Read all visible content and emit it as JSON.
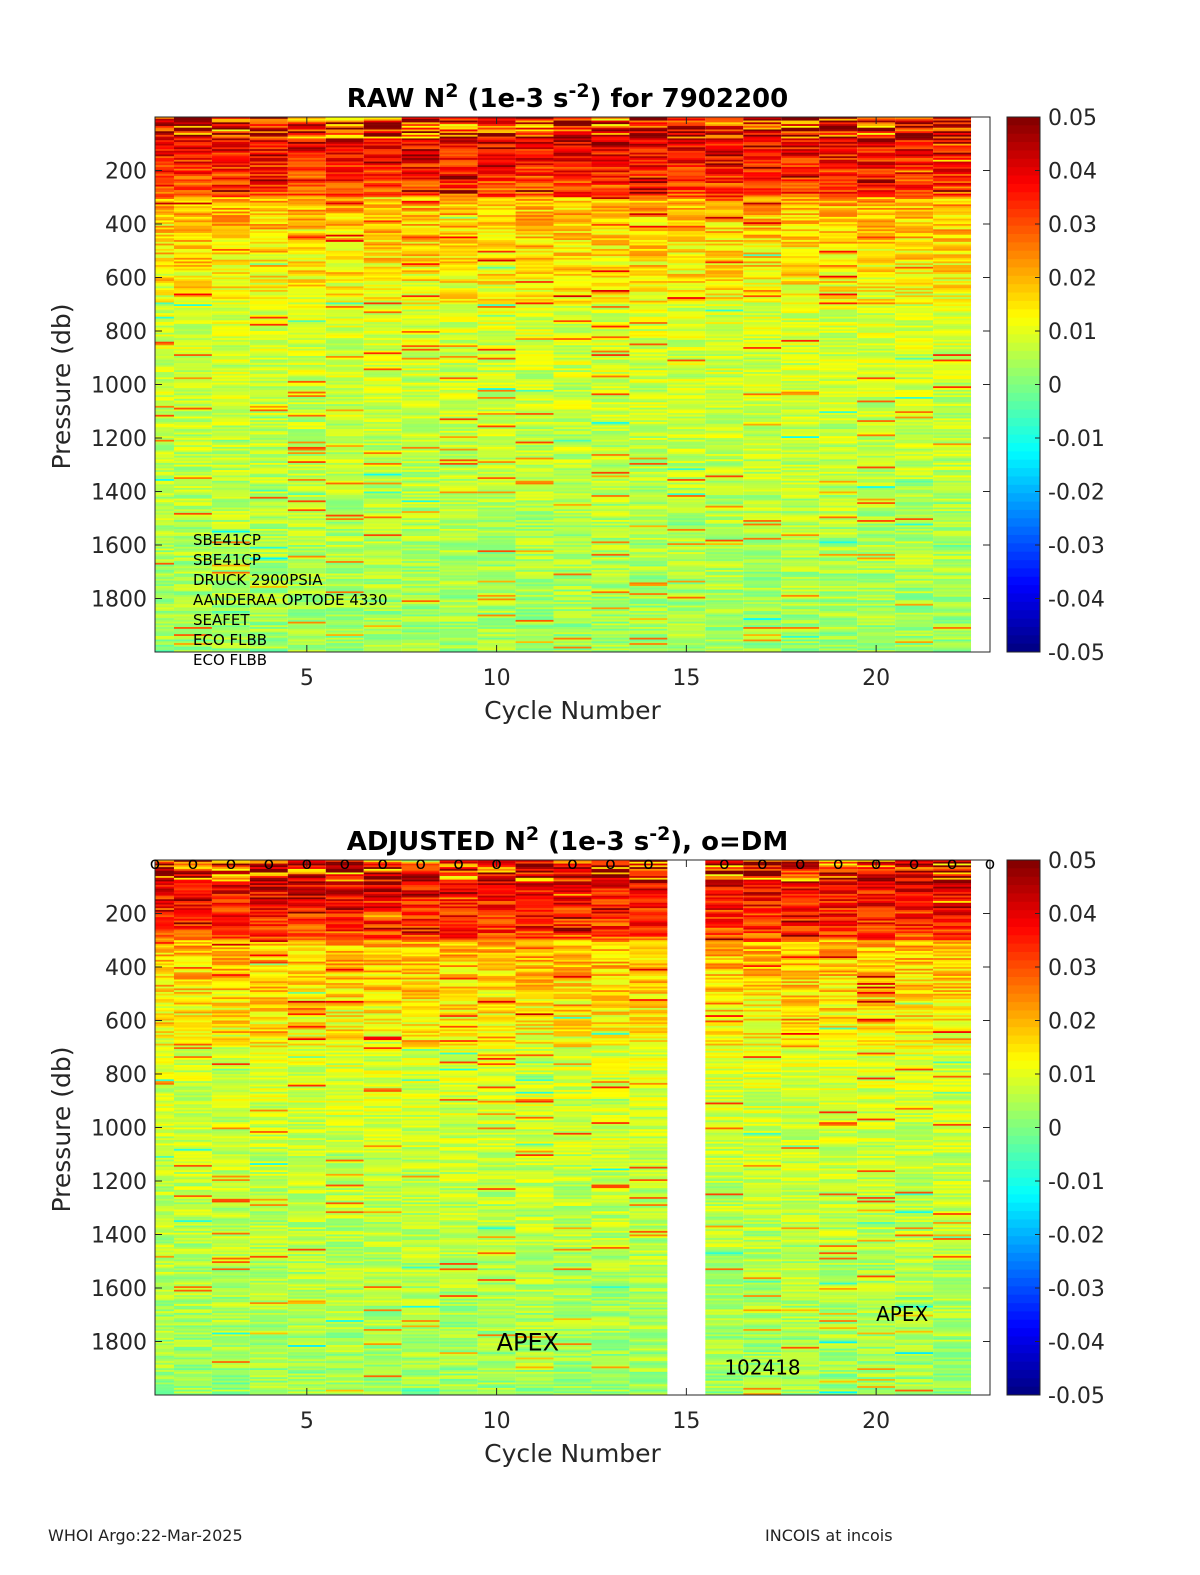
{
  "footer": {
    "left": "WHOI Argo:22-Mar-2025",
    "right": "INCOIS at incois"
  },
  "colorbar": {
    "ticks": [
      0.05,
      0.04,
      0.03,
      0.02,
      0.01,
      0,
      -0.01,
      -0.02,
      -0.03,
      -0.04,
      -0.05
    ],
    "tick_labels": [
      "0.05",
      "0.04",
      "0.03",
      "0.02",
      "0.01",
      "0",
      "-0.01",
      "-0.02",
      "-0.03",
      "-0.04",
      "-0.05"
    ],
    "range": [
      -0.05,
      0.05
    ],
    "colormap": "jet"
  },
  "chart_data": [
    {
      "type": "heatmap",
      "title_main": "RAW N",
      "title_sup": "2",
      "title_mid": " (1e-3 s",
      "title_sup2": "-2",
      "title_end": ") for 7902200",
      "xlabel": "Cycle Number",
      "ylabel": "Pressure (db)",
      "xlim": [
        1,
        23
      ],
      "ylim": [
        0,
        2000
      ],
      "xticks": [
        5,
        10,
        15,
        20
      ],
      "xtick_labels": [
        "5",
        "10",
        "15",
        "20"
      ],
      "yticks": [
        200,
        400,
        600,
        800,
        1000,
        1200,
        1400,
        1600,
        1800
      ],
      "ytick_labels": [
        "200",
        "400",
        "600",
        "800",
        "1000",
        "1200",
        "1400",
        "1600",
        "1800"
      ],
      "cycles": [
        1,
        2,
        3,
        4,
        5,
        6,
        7,
        8,
        9,
        10,
        11,
        12,
        13,
        14,
        15,
        16,
        17,
        18,
        19,
        20,
        21,
        22
      ],
      "missing_cycles": [],
      "dm_marker_cycles": [],
      "value_range": [
        -0.05,
        0.05
      ],
      "sensors": [
        "SBE41CP",
        "SBE41CP",
        "DRUCK 2900PSIA",
        "AANDERAA OPTODE 4330",
        "SEAFET",
        "ECO FLBB",
        "ECO FLBB"
      ],
      "annotations": []
    },
    {
      "type": "heatmap",
      "title_main": "ADJUSTED N",
      "title_sup": "2",
      "title_mid": " (1e-3 s",
      "title_sup2": "-2",
      "title_end": "), o=DM",
      "xlabel": "Cycle Number",
      "ylabel": "Pressure (db)",
      "xlim": [
        1,
        23
      ],
      "ylim": [
        0,
        2000
      ],
      "xticks": [
        5,
        10,
        15,
        20
      ],
      "xtick_labels": [
        "5",
        "10",
        "15",
        "20"
      ],
      "yticks": [
        200,
        400,
        600,
        800,
        1000,
        1200,
        1400,
        1600,
        1800
      ],
      "ytick_labels": [
        "200",
        "400",
        "600",
        "800",
        "1000",
        "1200",
        "1400",
        "1600",
        "1800"
      ],
      "cycles": [
        1,
        2,
        3,
        4,
        5,
        6,
        7,
        8,
        9,
        10,
        11,
        12,
        13,
        14,
        16,
        17,
        18,
        19,
        20,
        21,
        22
      ],
      "missing_cycles": [
        15
      ],
      "dm_marker_cycles": [
        1,
        2,
        3,
        4,
        5,
        6,
        7,
        8,
        9,
        10,
        12,
        13,
        14,
        16,
        17,
        18,
        19,
        20,
        21,
        22,
        23
      ],
      "dm_marker_label": "o",
      "value_range": [
        -0.05,
        0.05
      ],
      "sensors": [],
      "annotations": [
        {
          "text": "APEX",
          "cycle": 10,
          "pressure": 1800,
          "size": "large"
        },
        {
          "text": "102418",
          "cycle": 16,
          "pressure": 1900,
          "size": "small"
        },
        {
          "text": "APEX",
          "cycle": 20,
          "pressure": 1700,
          "size": "small"
        }
      ]
    }
  ]
}
